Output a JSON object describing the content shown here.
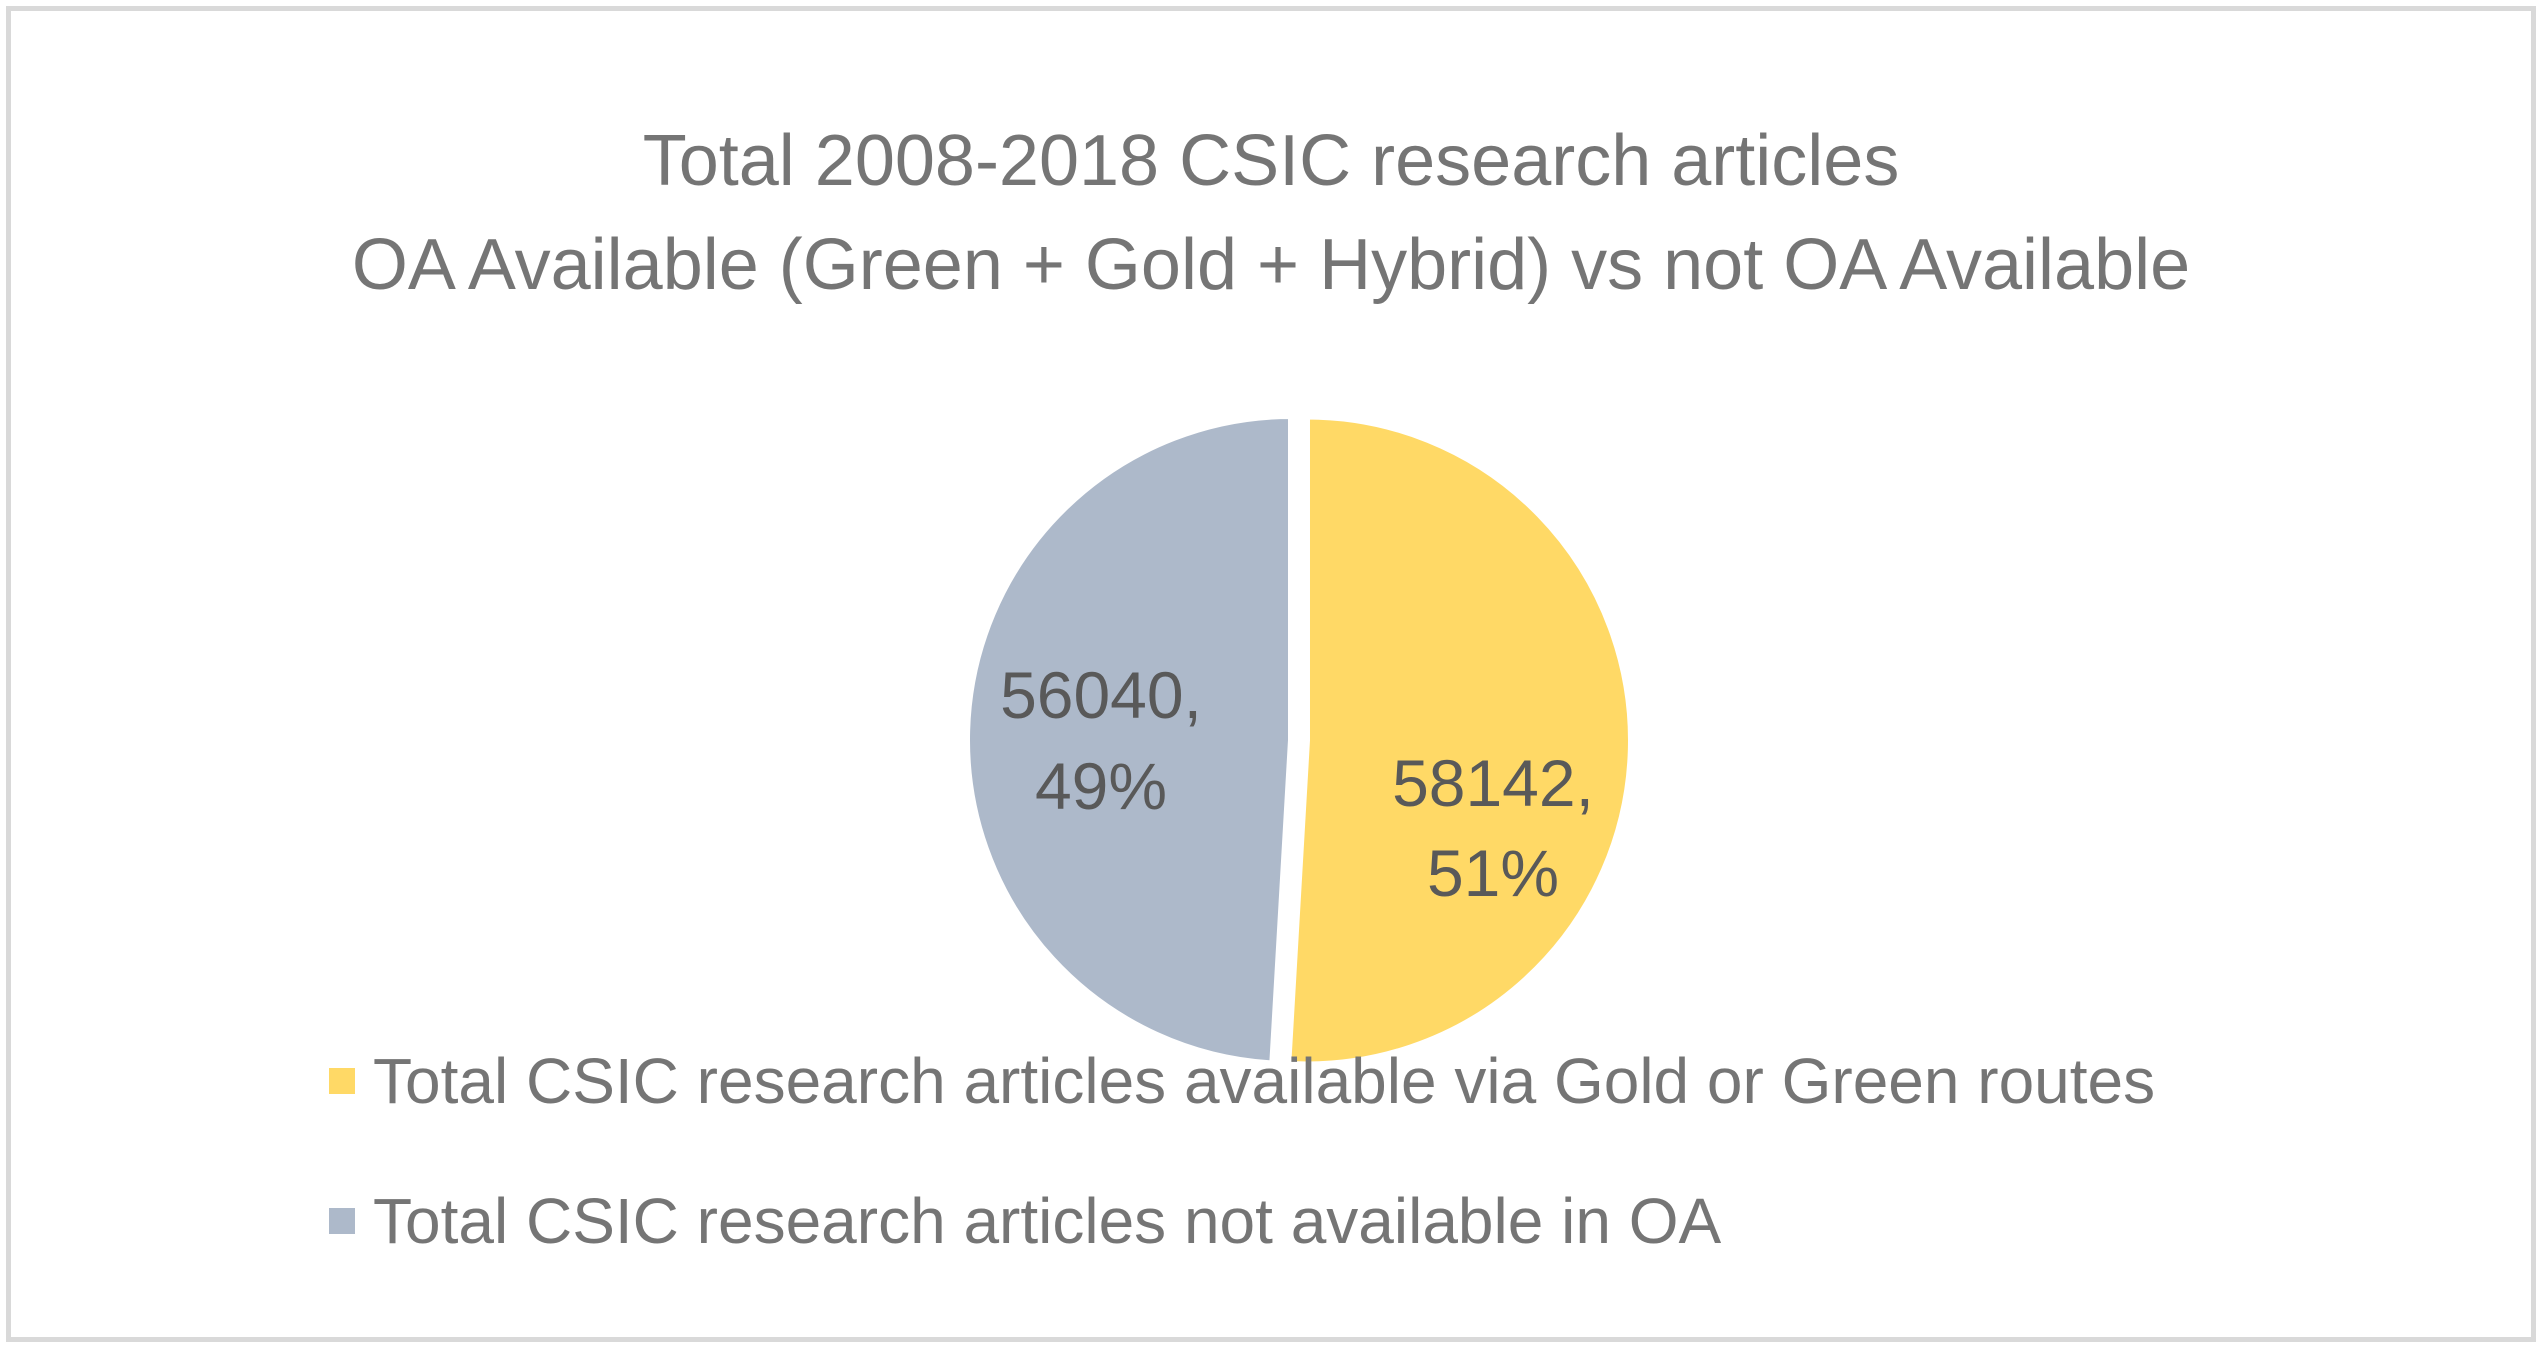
{
  "chart_data": {
    "type": "pie",
    "title": [
      "Total 2008-2018 CSIC research articles",
      "OA Available (Green + Gold + Hybrid) vs not OA Available"
    ],
    "slices": [
      {
        "name": "Total CSIC research articles available via Gold or Green routes",
        "value": 58142,
        "percent": "51%",
        "color": "#ffd966"
      },
      {
        "name": "Total CSIC research articles not available in OA",
        "value": 56040,
        "percent": "49%",
        "color": "#adb9ca"
      }
    ],
    "labels": [
      {
        "value": "58142,",
        "percent": "51%"
      },
      {
        "value": "56040,",
        "percent": "49%"
      }
    ],
    "legend_position": "bottom"
  }
}
